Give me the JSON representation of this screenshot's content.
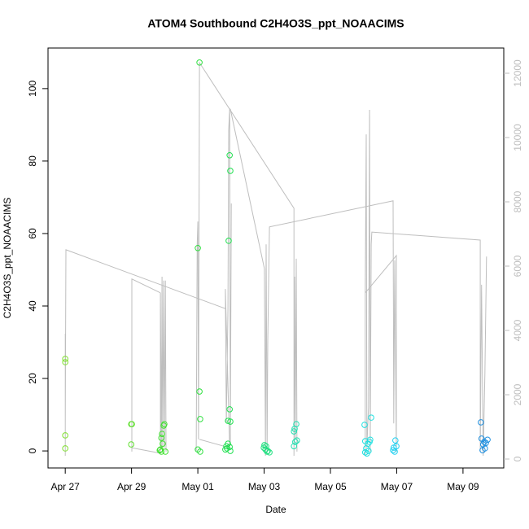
{
  "chart_data": {
    "type": "scatter",
    "title": "ATOM4 Southbound C2H4O3S_ppt_NOAACIMS",
    "xlabel": "Date",
    "ylabel": "C2H4O3S_ppt_NOAACIMS",
    "xlim": [
      -0.52,
      13.23
    ],
    "xticks": [
      {
        "value": 0,
        "label": "Apr 27"
      },
      {
        "value": 2,
        "label": "Apr 29"
      },
      {
        "value": 4,
        "label": "May 01"
      },
      {
        "value": 6,
        "label": "May 03"
      },
      {
        "value": 8,
        "label": "May 05"
      },
      {
        "value": 10,
        "label": "May 07"
      },
      {
        "value": 12,
        "label": "May 09"
      }
    ],
    "ylim": [
      -4.7,
      111.2
    ],
    "yticks": [
      0,
      20,
      40,
      60,
      80,
      100
    ],
    "y2lim": [
      -278,
      12785
    ],
    "y2ticks": [
      0,
      2000,
      4000,
      6000,
      8000,
      10000,
      12000
    ],
    "series": [
      {
        "type": "line",
        "axis": "y2",
        "color": "#bebebe",
        "x": [
          0,
          0,
          0,
          0.02,
          4.83,
          null,
          2.01,
          2.01,
          2.87,
          null,
          2.01,
          2.87,
          2.87,
          2.9,
          2.92,
          2.94,
          2.97,
          2.99,
          3.02,
          3.04,
          null,
          3.95,
          3.98,
          4.0,
          4.02,
          4.05,
          6.9,
          6.9,
          6.92,
          6.94,
          6.97,
          6.99,
          null,
          4.05,
          4.96,
          4.83,
          4.86,
          4.91,
          4.93,
          4.96,
          4.98,
          5.01,
          null,
          4.98,
          6.01,
          6.04,
          6.06,
          6.09,
          6.11,
          6.16,
          9.89,
          9.91,
          9.94,
          9.99,
          null,
          9.05,
          9.05,
          9.08,
          9.1,
          9.15,
          9.18,
          9.2,
          9.23,
          9.25,
          12.52,
          12.52,
          12.55,
          12.56,
          12.61,
          12.66,
          12.71,
          null,
          9.05,
          9.99,
          9.99
        ],
        "values": [
          100,
          3900,
          1110,
          6510,
          4680,
          null,
          230,
          5600,
          5170,
          null,
          350,
          180,
          5170,
          350,
          5670,
          230,
          5550,
          350,
          5550,
          230,
          null,
          230,
          6680,
          7390,
          610,
          12330,
          7800,
          100,
          5670,
          610,
          6230,
          230,
          null,
          610,
          350,
          5290,
          1110,
          4660,
          10230,
          10910,
          480,
          7950,
          null,
          10890,
          5920,
          100,
          6680,
          230,
          3650,
          7220,
          8030,
          1110,
          6180,
          230,
          null,
          100,
          5170,
          10100,
          350,
          1620,
          10860,
          230,
          6680,
          7060,
          6810,
          230,
          4150,
          5420,
          100,
          2630,
          6300,
          null,
          5170,
          6330,
          230
        ]
      },
      {
        "color": "#80e030",
        "x": [
          0,
          0,
          0,
          0
        ],
        "values": [
          25.4,
          24.5,
          4.3,
          0.7
        ]
      },
      {
        "color": "#60e030",
        "x": [
          1.99,
          2.01,
          1.99
        ],
        "values": [
          7.4,
          7.4,
          1.8
        ]
      },
      {
        "color": "#40e030",
        "x": [
          2.85,
          2.87,
          2.9,
          2.92,
          2.94,
          2.97,
          2.99,
          3.02,
          2.9
        ],
        "values": [
          0.2,
          0.4,
          -0.2,
          4.7,
          2.0,
          7.0,
          7.4,
          -0.2,
          3.6
        ]
      },
      {
        "color": "#30e040",
        "x": [
          4.0,
          4.05,
          4.05,
          4.07,
          4.0,
          4.07
        ],
        "values": [
          56.0,
          107.2,
          16.4,
          8.8,
          0.4,
          -0.2
        ]
      },
      {
        "color": "#20e050",
        "x": [
          4.96,
          4.98,
          4.93,
          4.96,
          4.91,
          4.98,
          4.86,
          4.88,
          4.91,
          4.96,
          4.98,
          4.83
        ],
        "values": [
          81.6,
          77.3,
          58.0,
          11.5,
          8.3,
          8.1,
          1.3,
          0.7,
          2.0,
          1.1,
          0,
          0.4
        ]
      },
      {
        "color": "#20e080",
        "x": [
          6.01,
          6.06,
          6.04,
          6.09,
          6.11,
          5.99,
          6.16
        ],
        "values": [
          1.6,
          1.3,
          0.4,
          -0.2,
          0,
          0.9,
          -0.4
        ]
      },
      {
        "color": "#20e0b0",
        "x": [
          6.9,
          6.92,
          6.94,
          6.97,
          6.99,
          6.9
        ],
        "values": [
          1.3,
          6.1,
          2.5,
          7.4,
          2.9,
          5.4
        ]
      },
      {
        "color": "#20e0e0",
        "x": [
          9.03,
          9.05,
          9.08,
          9.1,
          9.13,
          9.18,
          9.23,
          9.15,
          9.2,
          9.05
        ],
        "values": [
          7.2,
          2.7,
          0.7,
          -0.7,
          2.0,
          2.5,
          9.2,
          0,
          3.1,
          -0.4
        ]
      },
      {
        "color": "#20d0f0",
        "x": [
          9.89,
          9.91,
          9.94,
          9.96,
          9.99
        ],
        "values": [
          0.2,
          0.9,
          -0.2,
          2.9,
          1.3
        ]
      },
      {
        "color": "#2090e0",
        "x": [
          12.54,
          12.56,
          12.61,
          12.66,
          12.59,
          12.69,
          12.74,
          12.64
        ],
        "values": [
          7.9,
          3.4,
          1.8,
          0.7,
          0.2,
          2.2,
          3.1,
          2.5
        ]
      }
    ]
  }
}
